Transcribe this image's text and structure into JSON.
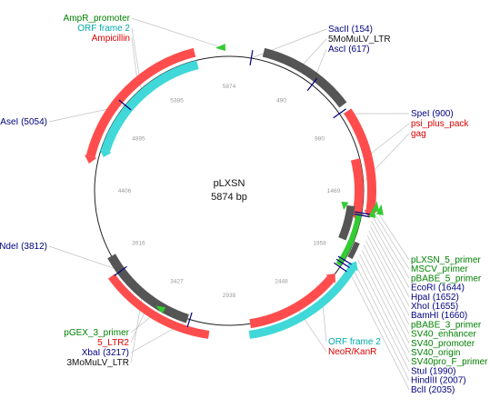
{
  "plasmid": {
    "name": "pLXSN",
    "size": "5874 bp"
  },
  "colors": {
    "enzyme": "#000080",
    "primer": "#008000",
    "orf": "#00aaaa",
    "gene": "#dd0000",
    "ltr": "#111111",
    "feature_red": "#ff4d4d",
    "feature_cyan": "#40d8d8",
    "feature_gray": "#555555",
    "feature_green": "#33cc33",
    "leader": "#c0c0c0"
  },
  "ticks": [
    "5874",
    "490",
    "980",
    "1469",
    "1958",
    "2448",
    "2938",
    "3427",
    "3916",
    "4406",
    "4895",
    "5385"
  ],
  "labels": {
    "topleft": [
      {
        "text": "AmpR_promoter",
        "type": "primer"
      },
      {
        "text": "ORF frame 2",
        "type": "orf"
      },
      {
        "text": "Ampicillin",
        "type": "gene"
      }
    ],
    "topright": [
      {
        "text": "SacII (154)",
        "type": "enzyme"
      },
      {
        "text": "5MoMuLV_LTR",
        "type": "ltr"
      },
      {
        "text": "AscI (617)",
        "type": "enzyme"
      }
    ],
    "right_top": [
      {
        "text": "SpeI (900)",
        "type": "enzyme"
      },
      {
        "text": "psi_plus_pack",
        "type": "gene"
      },
      {
        "text": "gag",
        "type": "gene"
      }
    ],
    "left_mid": [
      {
        "text": "AseI (5054)",
        "type": "enzyme"
      },
      {
        "text": "NdeI (3812)",
        "type": "enzyme"
      }
    ],
    "bottomleft": [
      {
        "text": "pGEX_3_primer",
        "type": "primer"
      },
      {
        "text": "5_LTR2",
        "type": "gene"
      },
      {
        "text": "XbaI (3217)",
        "type": "enzyme"
      },
      {
        "text": "3MoMuLV_LTR",
        "type": "ltr"
      }
    ],
    "bottommid": [
      {
        "text": "ORF frame 2",
        "type": "orf"
      },
      {
        "text": "NeoR/KanR",
        "type": "gene"
      }
    ],
    "rightlist": [
      {
        "text": "pLXSN_5_primer",
        "type": "primer"
      },
      {
        "text": "MSCV_primer",
        "type": "primer"
      },
      {
        "text": "pBABE_5_primer",
        "type": "primer"
      },
      {
        "text": "EcoRI (1644)",
        "type": "enzyme"
      },
      {
        "text": "HpaI (1652)",
        "type": "enzyme"
      },
      {
        "text": "XhoI (1655)",
        "type": "enzyme"
      },
      {
        "text": "BamHI (1660)",
        "type": "enzyme"
      },
      {
        "text": "pBABE_3_primer",
        "type": "primer"
      },
      {
        "text": "SV40_enhancer",
        "type": "primer"
      },
      {
        "text": "SV40_promoter",
        "type": "primer"
      },
      {
        "text": "SV40_origin",
        "type": "primer"
      },
      {
        "text": "SV40pro_F_primer",
        "type": "primer"
      },
      {
        "text": "StuI (1990)",
        "type": "enzyme"
      },
      {
        "text": "HindIII (2007)",
        "type": "enzyme"
      },
      {
        "text": "BclI (2035)",
        "type": "enzyme"
      }
    ]
  }
}
